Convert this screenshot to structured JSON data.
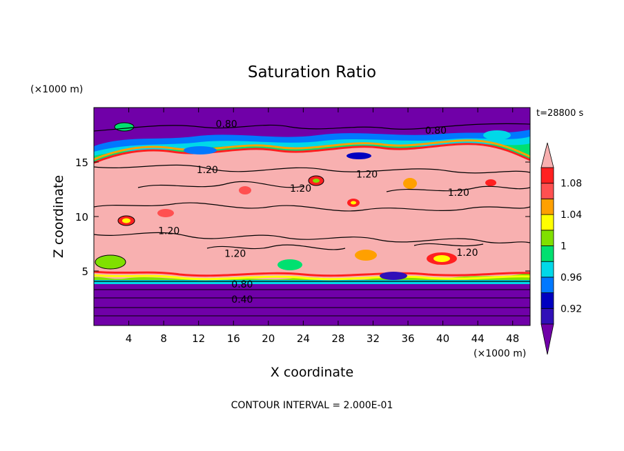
{
  "chart_data": {
    "type": "heatmap",
    "title": "Saturation Ratio",
    "xlabel": "X coordinate",
    "ylabel": "Z coordinate",
    "x_unit": "(×1000 m)",
    "y_unit": "(×1000 m)",
    "time_label": "t=28800 s",
    "footer": "CONTOUR INTERVAL = 2.000E-01",
    "xlim": [
      0,
      50
    ],
    "ylim": [
      0,
      20
    ],
    "x_ticks": [
      4,
      8,
      12,
      16,
      20,
      24,
      28,
      32,
      36,
      40,
      44,
      48
    ],
    "y_ticks": [
      5,
      10,
      15
    ],
    "colorbar": {
      "levels": [
        0.9,
        0.92,
        0.94,
        0.96,
        0.98,
        1.0,
        1.02,
        1.04,
        1.06,
        1.08,
        1.1
      ],
      "labels": [
        "0.92",
        "0.96",
        "1",
        "1.04",
        "1.08"
      ],
      "label_values": [
        0.92,
        0.96,
        1.0,
        1.04,
        1.08
      ],
      "colors": [
        "#7000a8",
        "#3010b8",
        "#0000c0",
        "#0078ff",
        "#00d8e8",
        "#00e070",
        "#80e000",
        "#ffff00",
        "#ffa000",
        "#ff5050",
        "#ff2020",
        "#f8b0b0"
      ]
    },
    "contour_labels": [
      {
        "text": "0.80",
        "x": 15.2,
        "y": 18.5
      },
      {
        "text": "0.80",
        "x": 39.2,
        "y": 17.9
      },
      {
        "text": "1.20",
        "x": 13.0,
        "y": 14.3
      },
      {
        "text": "1.20",
        "x": 23.7,
        "y": 12.6
      },
      {
        "text": "1.20",
        "x": 31.3,
        "y": 13.9
      },
      {
        "text": "1.20",
        "x": 41.8,
        "y": 12.2
      },
      {
        "text": "1.20",
        "x": 8.6,
        "y": 8.7
      },
      {
        "text": "1.20",
        "x": 16.2,
        "y": 6.6
      },
      {
        "text": "1.20",
        "x": 42.8,
        "y": 6.7
      },
      {
        "text": "0.80",
        "x": 17.0,
        "y": 3.8
      },
      {
        "text": "0.40",
        "x": 17.0,
        "y": 2.4
      }
    ]
  }
}
